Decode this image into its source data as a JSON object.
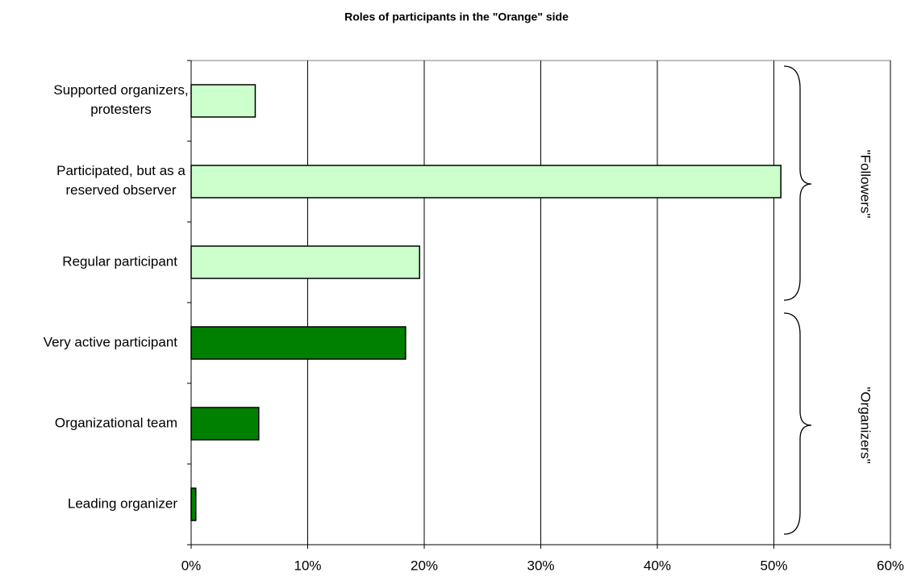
{
  "chart_data": {
    "type": "bar",
    "orientation": "horizontal",
    "title": "Roles of participants in the \"Orange\" side",
    "categories": [
      "Supported organizers, protesters",
      "Participated, but as a reserved observer",
      "Regular participant",
      "Very active participant",
      "Organizational team",
      "Leading organizer"
    ],
    "values": [
      5.5,
      50.6,
      19.6,
      18.4,
      5.8,
      0.4
    ],
    "colors": [
      "#ccffcc",
      "#ccffcc",
      "#ccffcc",
      "#008000",
      "#008000",
      "#008000"
    ],
    "xlim": [
      0,
      60
    ],
    "xticks": [
      {
        "value": 0,
        "label": "0%"
      },
      {
        "value": 10,
        "label": "10%"
      },
      {
        "value": 20,
        "label": "20%"
      },
      {
        "value": 30,
        "label": "30%"
      },
      {
        "value": 40,
        "label": "40%"
      },
      {
        "value": 50,
        "label": "50%"
      },
      {
        "value": 60,
        "label": "60%"
      }
    ],
    "grid": true,
    "annotations": [
      "\"Followers\"",
      "\"Organizers\""
    ]
  }
}
